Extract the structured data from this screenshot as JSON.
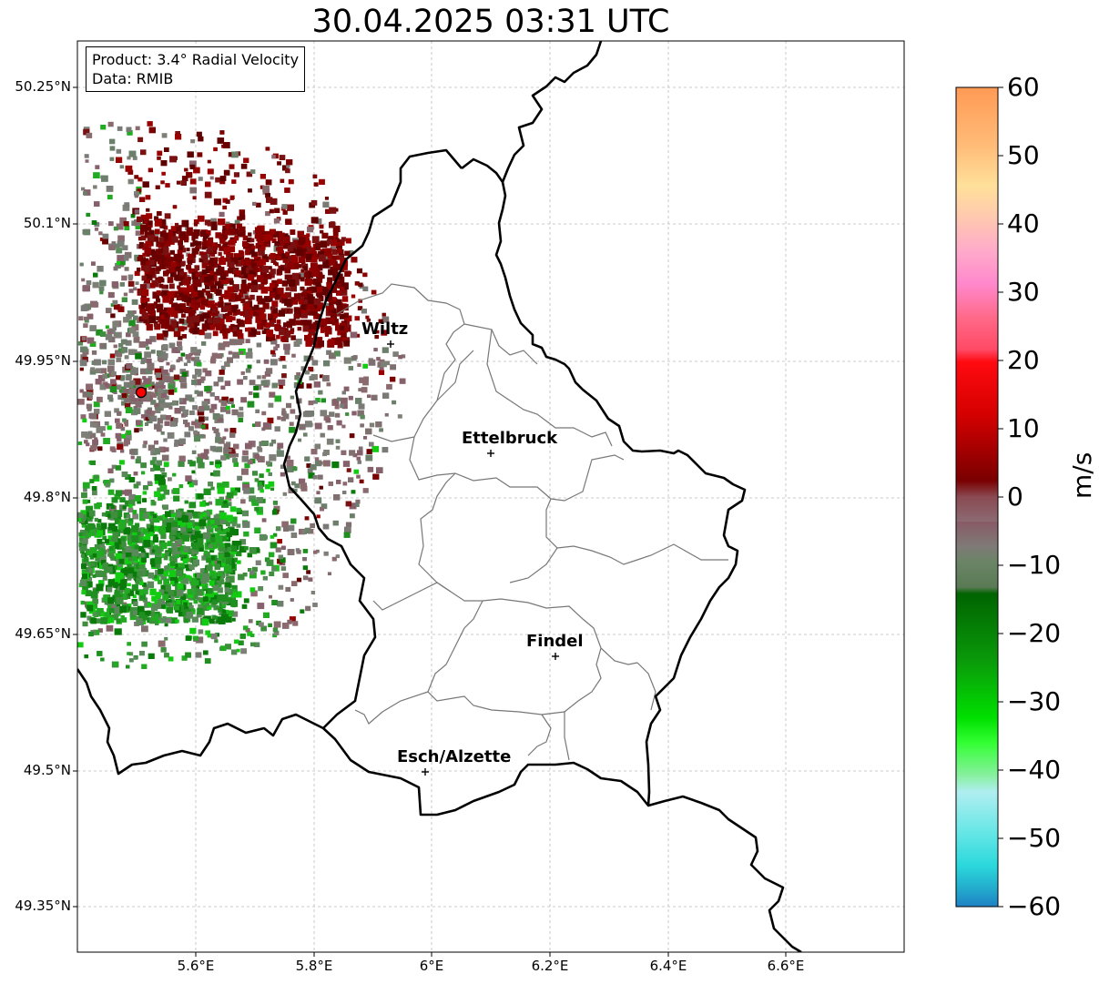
{
  "title": "30.04.2025 03:31 UTC",
  "info": {
    "product": "Product: 3.4° Radial Velocity",
    "data_source": "Data: RMIB"
  },
  "axes": {
    "y_labels": [
      "50.25°N",
      "50.1°N",
      "49.95°N",
      "49.8°N",
      "49.65°N",
      "49.5°N",
      "49.35°N"
    ],
    "x_labels": [
      "5.6°E",
      "5.8°E",
      "6°E",
      "6.2°E",
      "6.4°E",
      "6.6°E"
    ],
    "grid": true
  },
  "cities": [
    {
      "name": "Wiltz"
    },
    {
      "name": "Ettelbruck"
    },
    {
      "name": "Findel"
    },
    {
      "name": "Esch/Alzette"
    }
  ],
  "colorbar": {
    "unit": "m/s",
    "min": -60,
    "max": 60,
    "ticks": [
      "60",
      "50",
      "40",
      "30",
      "20",
      "10",
      "0",
      "−10",
      "−20",
      "−30",
      "−40",
      "−50",
      "−60"
    ]
  },
  "colors": {
    "border": "#000000",
    "canton_lines": "#777777",
    "radar_site": "#ff0000",
    "inbound_green": "#1f8f1f",
    "outbound_red": "#7a0000",
    "near_zero": "#7f6f6f"
  }
}
